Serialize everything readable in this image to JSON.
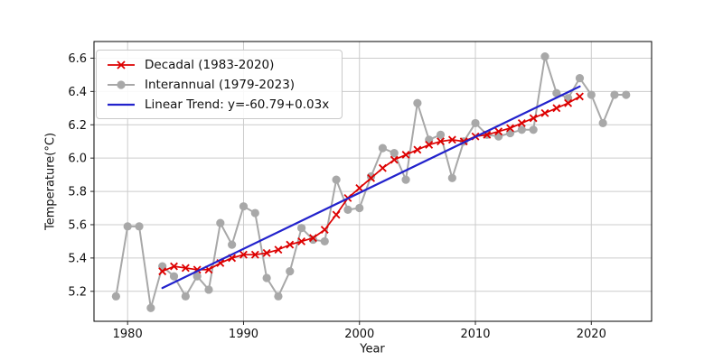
{
  "chart_data": {
    "type": "line",
    "title": "",
    "xlabel": "Year",
    "ylabel": "Temperature(°C)",
    "xlim": [
      1977.1,
      2025.2
    ],
    "ylim": [
      5.02,
      6.7
    ],
    "x_ticks": [
      1980,
      1990,
      2000,
      2010,
      2020
    ],
    "y_ticks": [
      5.2,
      5.4,
      5.6,
      5.8,
      6.0,
      6.2,
      6.4,
      6.6
    ],
    "grid": true,
    "grid_color": "#cccccc",
    "legend_position": "upper left",
    "legend_order": [
      1,
      0,
      2
    ],
    "series": [
      {
        "id": "interannual",
        "name": "Interannual (1979-2023)",
        "color": "#a8a8a8",
        "marker": "circle",
        "x": [
          1979,
          1980,
          1981,
          1982,
          1983,
          1984,
          1985,
          1986,
          1987,
          1988,
          1989,
          1990,
          1991,
          1992,
          1993,
          1994,
          1995,
          1996,
          1997,
          1998,
          1999,
          2000,
          2001,
          2002,
          2003,
          2004,
          2005,
          2006,
          2007,
          2008,
          2009,
          2010,
          2011,
          2012,
          2013,
          2014,
          2015,
          2016,
          2017,
          2018,
          2019,
          2020,
          2021,
          2022,
          2023
        ],
        "y": [
          5.17,
          5.59,
          5.59,
          5.1,
          5.35,
          5.29,
          5.17,
          5.29,
          5.21,
          5.61,
          5.48,
          5.71,
          5.67,
          5.28,
          5.17,
          5.32,
          5.58,
          5.51,
          5.5,
          5.87,
          5.69,
          5.7,
          5.89,
          6.06,
          6.03,
          5.87,
          6.33,
          6.11,
          6.14,
          5.88,
          6.1,
          6.21,
          6.14,
          6.13,
          6.15,
          6.17,
          6.17,
          6.61,
          6.39,
          6.36,
          6.48,
          6.38,
          6.21,
          6.38,
          6.38
        ]
      },
      {
        "id": "decadal",
        "name": "Decadal (1983-2020)",
        "color": "#dd0000",
        "marker": "x",
        "x": [
          1983,
          1984,
          1985,
          1986,
          1987,
          1988,
          1989,
          1990,
          1991,
          1992,
          1993,
          1994,
          1995,
          1996,
          1997,
          1998,
          1999,
          2000,
          2001,
          2002,
          2003,
          2004,
          2005,
          2006,
          2007,
          2008,
          2009,
          2010,
          2011,
          2012,
          2013,
          2014,
          2015,
          2016,
          2017,
          2018,
          2019
        ],
        "y": [
          5.32,
          5.35,
          5.34,
          5.33,
          5.33,
          5.37,
          5.4,
          5.42,
          5.42,
          5.43,
          5.45,
          5.48,
          5.5,
          5.52,
          5.57,
          5.66,
          5.76,
          5.82,
          5.88,
          5.94,
          5.99,
          6.02,
          6.05,
          6.08,
          6.1,
          6.11,
          6.1,
          6.13,
          6.14,
          6.16,
          6.18,
          6.21,
          6.24,
          6.27,
          6.3,
          6.33,
          6.37
        ]
      },
      {
        "id": "trend",
        "name": "Linear Trend: y=-60.79+0.03x",
        "color": "#2222cc",
        "marker": "none",
        "x": [
          1983,
          2019
        ],
        "y": [
          5.22,
          6.43
        ]
      }
    ]
  }
}
